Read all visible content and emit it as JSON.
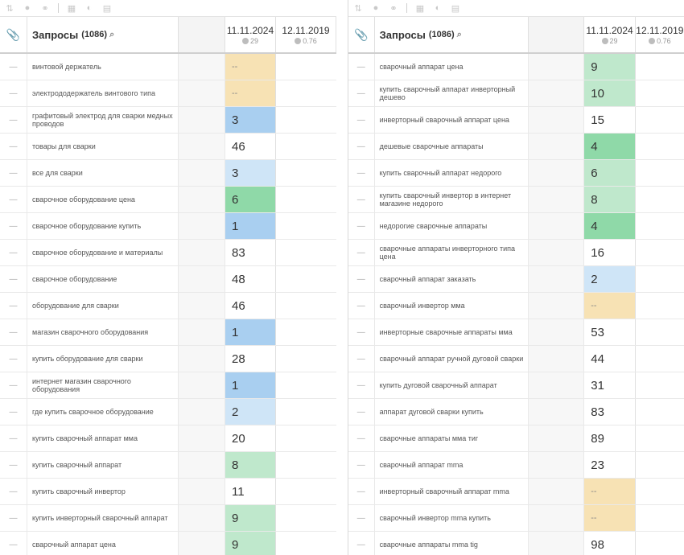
{
  "colors": {
    "empty": "#ffffff",
    "green": "#bfe8cc",
    "green_dark": "#8fd9a8",
    "blue": "#a9cff0",
    "blue_light": "#cfe5f7",
    "yellow": "#f7e2b4"
  },
  "icons": [
    "sort-icon",
    "eye-icon",
    "link-icon",
    "calculator-icon",
    "contrast-icon",
    "chart-icon",
    "paperclip-icon",
    "search-icon",
    "google-icon"
  ],
  "left": {
    "header": {
      "title": "Запросы",
      "count": "(1086)",
      "date1": "11.11.2024",
      "date1_sub": "29",
      "date2": "12.11.2019",
      "date2_sub": "0.76"
    },
    "rows": [
      {
        "dash": "—",
        "query": "винтовой держатель",
        "value": "--",
        "color": "yellow"
      },
      {
        "dash": "—",
        "query": "электрододержатель винтового типа",
        "value": "--",
        "color": "yellow"
      },
      {
        "dash": "—",
        "query": "графитовый электрод для сварки медных проводов",
        "value": "3",
        "color": "blue"
      },
      {
        "dash": "—",
        "query": "товары для сварки",
        "value": "46",
        "color": "empty"
      },
      {
        "dash": "—",
        "query": "все для сварки",
        "value": "3",
        "color": "blue_light"
      },
      {
        "dash": "—",
        "query": "сварочное оборудование цена",
        "value": "6",
        "color": "green_dark"
      },
      {
        "dash": "—",
        "query": "сварочное оборудование купить",
        "value": "1",
        "color": "blue"
      },
      {
        "dash": "—",
        "query": "сварочное оборудование и материалы",
        "value": "83",
        "color": "empty"
      },
      {
        "dash": "—",
        "query": "сварочное оборудование",
        "value": "48",
        "color": "empty"
      },
      {
        "dash": "—",
        "query": "оборудование для сварки",
        "value": "46",
        "color": "empty"
      },
      {
        "dash": "—",
        "query": "магазин сварочного оборудования",
        "value": "1",
        "color": "blue"
      },
      {
        "dash": "—",
        "query": "купить оборудование для сварки",
        "value": "28",
        "color": "empty"
      },
      {
        "dash": "—",
        "query": "интернет магазин сварочного оборудования",
        "value": "1",
        "color": "blue"
      },
      {
        "dash": "—",
        "query": "где купить сварочное оборудование",
        "value": "2",
        "color": "blue_light"
      },
      {
        "dash": "—",
        "query": "купить сварочный аппарат мма",
        "value": "20",
        "color": "empty"
      },
      {
        "dash": "—",
        "query": "купить сварочный аппарат",
        "value": "8",
        "color": "green"
      },
      {
        "dash": "—",
        "query": "купить сварочный инвертор",
        "value": "11",
        "color": "empty"
      },
      {
        "dash": "—",
        "query": "купить инверторный сварочный аппарат",
        "value": "9",
        "color": "green"
      },
      {
        "dash": "—",
        "query": "сварочный аппарат цена",
        "value": "9",
        "color": "green"
      }
    ]
  },
  "right": {
    "header": {
      "title": "Запросы",
      "count": "(1086)",
      "date1": "11.11.2024",
      "date1_sub": "29",
      "date2": "12.11.2019",
      "date2_sub": "0.76"
    },
    "rows": [
      {
        "dash": "—",
        "query": "сварочный аппарат цена",
        "value": "9",
        "color": "green"
      },
      {
        "dash": "—",
        "query": "купить сварочный аппарат инверторный дешево",
        "value": "10",
        "color": "green"
      },
      {
        "dash": "—",
        "query": "инверторный сварочный аппарат цена",
        "value": "15",
        "color": "empty"
      },
      {
        "dash": "—",
        "query": "дешевые сварочные аппараты",
        "value": "4",
        "color": "green_dark"
      },
      {
        "dash": "—",
        "query": "купить сварочный аппарат недорого",
        "value": "6",
        "color": "green"
      },
      {
        "dash": "—",
        "query": "купить сварочный инвертор в интернет магазине недорого",
        "value": "8",
        "color": "green"
      },
      {
        "dash": "—",
        "query": "недорогие сварочные аппараты",
        "value": "4",
        "color": "green_dark"
      },
      {
        "dash": "—",
        "query": "сварочные аппараты инверторного типа цена",
        "value": "16",
        "color": "empty"
      },
      {
        "dash": "—",
        "query": "сварочный аппарат заказать",
        "value": "2",
        "color": "blue_light"
      },
      {
        "dash": "—",
        "query": "сварочный инвертор мма",
        "value": "--",
        "color": "yellow"
      },
      {
        "dash": "—",
        "query": "инверторные сварочные аппараты мма",
        "value": "53",
        "color": "empty"
      },
      {
        "dash": "—",
        "query": "сварочный аппарат ручной дуговой сварки",
        "value": "44",
        "color": "empty"
      },
      {
        "dash": "—",
        "query": "купить дуговой сварочный аппарат",
        "value": "31",
        "color": "empty"
      },
      {
        "dash": "—",
        "query": "аппарат дуговой сварки купить",
        "value": "83",
        "color": "empty"
      },
      {
        "dash": "—",
        "query": "сварочные аппараты мма тиг",
        "value": "89",
        "color": "empty"
      },
      {
        "dash": "—",
        "query": "сварочный аппарат mma",
        "value": "23",
        "color": "empty"
      },
      {
        "dash": "—",
        "query": "инверторный сварочный аппарат mma",
        "value": "--",
        "color": "yellow"
      },
      {
        "dash": "—",
        "query": "сварочный инвертор mma купить",
        "value": "--",
        "color": "yellow"
      },
      {
        "dash": "—",
        "query": "сварочные аппараты mma tig",
        "value": "98",
        "color": "empty"
      }
    ]
  }
}
